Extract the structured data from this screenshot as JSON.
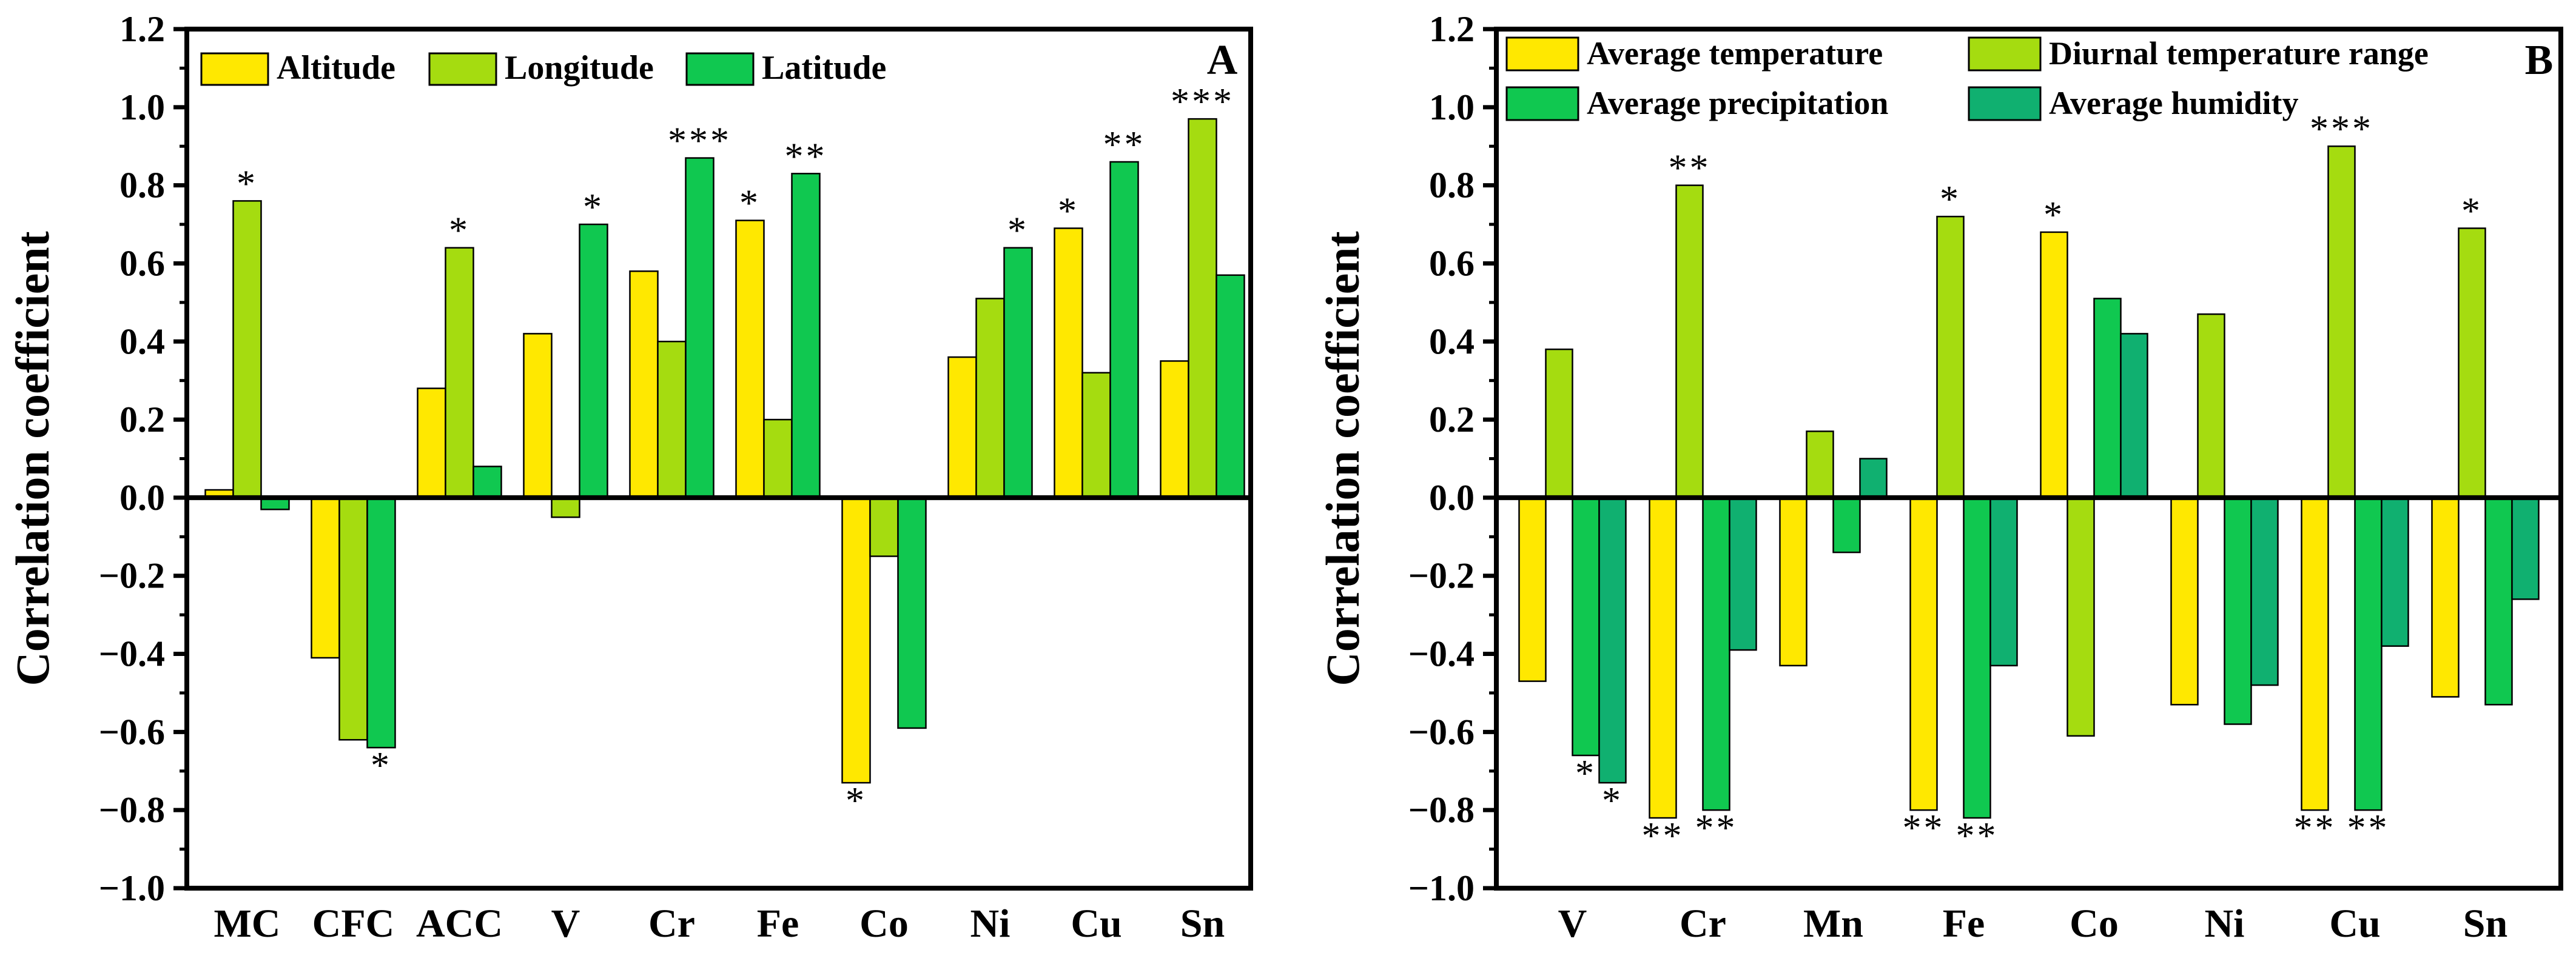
{
  "chart_data": [
    {
      "type": "bar",
      "panel": "A",
      "ylabel": "Correlation coefficient",
      "ylim": [
        -1.0,
        1.2
      ],
      "yticks": [
        "1.2",
        "1.0",
        "0.8",
        "0.6",
        "0.4",
        "0.2",
        "0.0",
        "-0.2",
        "-0.4",
        "-0.6",
        "-0.8",
        "-1.0"
      ],
      "legend_placement": "top",
      "categories": [
        "MC",
        "CFC",
        "ACC",
        "V",
        "Cr",
        "Fe",
        "Co",
        "Ni",
        "Cu",
        "Sn"
      ],
      "series": [
        {
          "name": "Altitude",
          "color": "#FFE800",
          "values": [
            0.02,
            -0.41,
            0.28,
            0.42,
            0.58,
            0.71,
            -0.73,
            0.36,
            0.69,
            0.35
          ],
          "significance": [
            "",
            "",
            "",
            "",
            "",
            "*",
            "*",
            "",
            "*",
            ""
          ]
        },
        {
          "name": "Longitude",
          "color": "#A5DC10",
          "values": [
            0.76,
            -0.62,
            0.64,
            -0.05,
            0.4,
            0.2,
            -0.15,
            0.51,
            0.32,
            0.97
          ],
          "significance": [
            "*",
            "",
            "*",
            "",
            "",
            "",
            "",
            "",
            "",
            "***"
          ]
        },
        {
          "name": "Latitude",
          "color": "#10C850",
          "values": [
            -0.03,
            -0.64,
            0.08,
            0.7,
            0.87,
            0.83,
            -0.59,
            0.64,
            0.86,
            0.57
          ],
          "significance": [
            "",
            "*",
            "",
            "*",
            "***",
            "**",
            "",
            "*",
            "**",
            ""
          ]
        }
      ]
    },
    {
      "type": "bar",
      "panel": "B",
      "ylabel": "Correlation coefficient",
      "ylim": [
        -1.0,
        1.2
      ],
      "yticks": [
        "1.2",
        "1.0",
        "0.8",
        "0.6",
        "0.4",
        "0.2",
        "0.0",
        "-0.2",
        "-0.4",
        "-0.6",
        "-0.8",
        "-1.0"
      ],
      "legend_placement": "top",
      "categories": [
        "V",
        "Cr",
        "Mn",
        "Fe",
        "Co",
        "Ni",
        "Cu",
        "Sn"
      ],
      "series": [
        {
          "name": "Average temperature",
          "color": "#FFE800",
          "values": [
            -0.47,
            -0.82,
            -0.43,
            -0.8,
            0.68,
            -0.53,
            -0.8,
            -0.51
          ],
          "significance": [
            "",
            "**",
            "",
            "**",
            "*",
            "",
            "**",
            ""
          ]
        },
        {
          "name": "Diurnal temperature range",
          "color": "#A5DC10",
          "values": [
            0.38,
            0.8,
            0.17,
            0.72,
            -0.61,
            0.47,
            0.9,
            0.69
          ],
          "significance": [
            "",
            "**",
            "",
            "*",
            "",
            "",
            "***",
            "*"
          ]
        },
        {
          "name": "Average precipitation",
          "color": "#10C850",
          "values": [
            -0.66,
            -0.8,
            -0.14,
            -0.82,
            0.51,
            -0.58,
            -0.8,
            -0.53
          ],
          "significance": [
            "*",
            "**",
            "",
            "**",
            "",
            "",
            "**",
            ""
          ]
        },
        {
          "name": "Average humidity",
          "color": "#10B070",
          "values": [
            -0.73,
            -0.39,
            0.1,
            -0.43,
            0.42,
            -0.48,
            -0.38,
            -0.26
          ],
          "significance": [
            "*",
            "",
            "",
            "",
            "",
            "",
            "",
            ""
          ]
        }
      ]
    }
  ]
}
